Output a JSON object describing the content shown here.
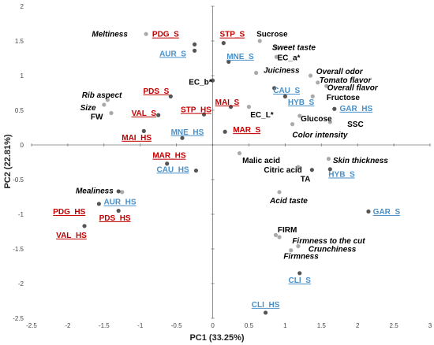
{
  "chart_data": {
    "type": "scatter",
    "title": "",
    "xlabel": "PC1 (33.25%)",
    "ylabel": "PC2 (22.81%)",
    "xlim": [
      -2.5,
      3
    ],
    "ylim": [
      -2.5,
      2
    ],
    "xticks": [
      "-2.5",
      "-2",
      "-1.5",
      "-1",
      "-0.5",
      "0",
      "0.5",
      "1",
      "1.5",
      "2",
      "2.5",
      "3"
    ],
    "yticks": [
      "2",
      "1.5",
      "1",
      "0.5",
      "0",
      "-0.5",
      "-1",
      "-1.5",
      "-2",
      "-2.5"
    ],
    "grid": false,
    "colors": {
      "variable": "#000000",
      "variable_point": "#aaaaaa",
      "sample_point": "#555555",
      "red_sample": "#c00000",
      "blue_sample": "#4a90c8"
    },
    "points": [
      {
        "label": "Meltiness",
        "x": -0.92,
        "y": 1.6,
        "kind": "variable",
        "italic": true,
        "lx": -1.42,
        "ly": 1.6
      },
      {
        "label": "PDG_S",
        "x": -0.25,
        "y": 1.45,
        "kind": "red",
        "lx": -0.65,
        "ly": 1.6
      },
      {
        "label": "AUR_S",
        "x": -0.25,
        "y": 1.36,
        "kind": "blue",
        "lx": -0.55,
        "ly": 1.32
      },
      {
        "label": "STP_S",
        "x": 0.15,
        "y": 1.47,
        "kind": "red",
        "lx": 0.27,
        "ly": 1.6
      },
      {
        "label": "Sucrose",
        "x": 0.65,
        "y": 1.5,
        "kind": "variable",
        "italic": false,
        "lx": 0.82,
        "ly": 1.6
      },
      {
        "label": "Sweet taste",
        "x": 0.88,
        "y": 1.4,
        "kind": "variable",
        "italic": true,
        "lx": 1.12,
        "ly": 1.41
      },
      {
        "label": "MNE_S",
        "x": 0.22,
        "y": 1.2,
        "kind": "blue",
        "lx": 0.38,
        "ly": 1.28
      },
      {
        "label": "EC_a*",
        "x": 0.88,
        "y": 1.27,
        "kind": "variable",
        "italic": false,
        "lx": 1.05,
        "ly": 1.26
      },
      {
        "label": "Juiciness",
        "x": 0.6,
        "y": 1.04,
        "kind": "variable",
        "italic": true,
        "lx": 0.95,
        "ly": 1.08
      },
      {
        "label": "Overall odor",
        "x": 1.35,
        "y": 1.0,
        "kind": "variable",
        "italic": true,
        "lx": 1.75,
        "ly": 1.06
      },
      {
        "label": "Tomato flavor",
        "x": 1.45,
        "y": 0.9,
        "kind": "variable",
        "italic": true,
        "lx": 1.83,
        "ly": 0.94
      },
      {
        "label": "Overall flavor",
        "x": 1.57,
        "y": 0.85,
        "kind": "variable",
        "italic": true,
        "lx": 1.93,
        "ly": 0.83
      },
      {
        "label": "EC_b*",
        "x": 0.0,
        "y": 0.93,
        "kind": "sample",
        "lx": -0.17,
        "ly": 0.91
      },
      {
        "label": "CAU_S",
        "x": 0.85,
        "y": 0.82,
        "kind": "blue",
        "lx": 1.02,
        "ly": 0.79
      },
      {
        "label": "HYB_S",
        "x": 1.0,
        "y": 0.7,
        "kind": "blue",
        "lx": 1.22,
        "ly": 0.62
      },
      {
        "label": "Fructose",
        "x": 1.38,
        "y": 0.7,
        "kind": "variable",
        "italic": false,
        "lx": 1.8,
        "ly": 0.69
      },
      {
        "label": "GAR_HS",
        "x": 1.68,
        "y": 0.52,
        "kind": "sample-blue",
        "lx": 1.98,
        "ly": 0.53
      },
      {
        "label": "PDS_S",
        "x": -0.58,
        "y": 0.7,
        "kind": "red",
        "lx": -0.78,
        "ly": 0.78
      },
      {
        "label": "Rib aspect",
        "x": -1.45,
        "y": 0.65,
        "kind": "variable",
        "italic": true,
        "lx": -1.53,
        "ly": 0.72
      },
      {
        "label": "Size",
        "x": -1.5,
        "y": 0.58,
        "kind": "variable",
        "italic": true,
        "lx": -1.72,
        "ly": 0.54
      },
      {
        "label": "FW",
        "x": -1.4,
        "y": 0.46,
        "kind": "variable",
        "italic": false,
        "lx": -1.6,
        "ly": 0.41
      },
      {
        "label": "VAL_S",
        "x": -0.75,
        "y": 0.43,
        "kind": "red",
        "lx": -0.95,
        "ly": 0.46
      },
      {
        "label": "MAI_S",
        "x": 0.25,
        "y": 0.55,
        "kind": "red",
        "lx": 0.2,
        "ly": 0.62
      },
      {
        "label": "STP_HS",
        "x": -0.12,
        "y": 0.44,
        "kind": "red",
        "lx": -0.23,
        "ly": 0.51
      },
      {
        "label": "EC_L*",
        "x": 0.5,
        "y": 0.55,
        "kind": "variable",
        "italic": false,
        "lx": 0.68,
        "ly": 0.44
      },
      {
        "label": "Glucose",
        "x": 1.2,
        "y": 0.42,
        "kind": "variable",
        "italic": false,
        "lx": 1.43,
        "ly": 0.38
      },
      {
        "label": "SSC",
        "x": 1.62,
        "y": 0.33,
        "kind": "variable",
        "italic": false,
        "lx": 1.97,
        "ly": 0.3
      },
      {
        "label": "Color intensity",
        "x": 1.1,
        "y": 0.3,
        "kind": "variable",
        "italic": true,
        "lx": 1.48,
        "ly": 0.15
      },
      {
        "label": "MAR_S",
        "x": 0.17,
        "y": 0.19,
        "kind": "red",
        "lx": 0.47,
        "ly": 0.22
      },
      {
        "label": "MAI_HS",
        "x": -0.95,
        "y": 0.2,
        "kind": "red",
        "lx": -1.05,
        "ly": 0.11
      },
      {
        "label": "MNE_HS",
        "x": -0.42,
        "y": 0.1,
        "kind": "blue",
        "lx": -0.35,
        "ly": 0.19
      },
      {
        "label": "Malic acid",
        "x": 0.37,
        "y": -0.12,
        "kind": "variable",
        "italic": false,
        "lx": 0.67,
        "ly": -0.22
      },
      {
        "label": "MAR_HS",
        "x": -0.63,
        "y": -0.27,
        "kind": "red",
        "lx": -0.6,
        "ly": -0.15
      },
      {
        "label": "CAU_HS",
        "x": -0.23,
        "y": -0.37,
        "kind": "blue",
        "lx": -0.55,
        "ly": -0.35
      },
      {
        "label": "Skin thickness",
        "x": 1.6,
        "y": -0.2,
        "kind": "variable",
        "italic": true,
        "lx": 2.04,
        "ly": -0.22
      },
      {
        "label": "Citric acid",
        "x": 1.18,
        "y": -0.32,
        "kind": "variable",
        "italic": false,
        "lx": 0.97,
        "ly": -0.36
      },
      {
        "label": "TA",
        "x": 1.37,
        "y": -0.36,
        "kind": "sample",
        "lx": 1.28,
        "ly": -0.49
      },
      {
        "label": "HYB_S",
        "x": 1.62,
        "y": -0.35,
        "kind": "blue",
        "lx": 1.78,
        "ly": -0.42
      },
      {
        "label": "Acid taste",
        "x": 0.92,
        "y": -0.68,
        "kind": "variable",
        "italic": true,
        "lx": 1.05,
        "ly": -0.8
      },
      {
        "label": "Mealiness",
        "x": -1.25,
        "y": -0.68,
        "kind": "variable",
        "italic": true,
        "lx": -1.63,
        "ly": -0.66
      },
      {
        "label": "AUR_HS",
        "x": -1.3,
        "y": -0.67,
        "kind": "blue",
        "lx": -1.28,
        "ly": -0.82
      },
      {
        "label": "PDG_HS",
        "x": -1.57,
        "y": -0.85,
        "kind": "red",
        "lx": -1.98,
        "ly": -0.96
      },
      {
        "label": "PDS_HS",
        "x": -1.3,
        "y": -0.95,
        "kind": "red",
        "lx": -1.35,
        "ly": -1.05
      },
      {
        "label": "VAL_HS",
        "x": -1.77,
        "y": -1.17,
        "kind": "red",
        "lx": -1.95,
        "ly": -1.3
      },
      {
        "label": "GAR_S",
        "x": 2.15,
        "y": -0.96,
        "kind": "sample-blue",
        "lx": 2.4,
        "ly": -0.96
      },
      {
        "label": "FIRM",
        "x": 0.87,
        "y": -1.3,
        "kind": "variable",
        "italic": false,
        "lx": 1.03,
        "ly": -1.22
      },
      {
        "label": "Firmness to the cut",
        "x": 0.92,
        "y": -1.33,
        "kind": "variable",
        "italic": true,
        "lx": 1.6,
        "ly": -1.38
      },
      {
        "label": "Crunchiness",
        "x": 1.18,
        "y": -1.46,
        "kind": "variable",
        "italic": true,
        "lx": 1.65,
        "ly": -1.5
      },
      {
        "label": "Firmness",
        "x": 1.08,
        "y": -1.52,
        "kind": "variable",
        "italic": true,
        "lx": 1.22,
        "ly": -1.6
      },
      {
        "label": "CLI_S",
        "x": 1.2,
        "y": -1.85,
        "kind": "sample-blue",
        "lx": 1.2,
        "ly": -1.95
      },
      {
        "label": "CLI_HS",
        "x": 0.73,
        "y": -2.42,
        "kind": "sample-blue",
        "lx": 0.73,
        "ly": -2.3
      }
    ]
  }
}
